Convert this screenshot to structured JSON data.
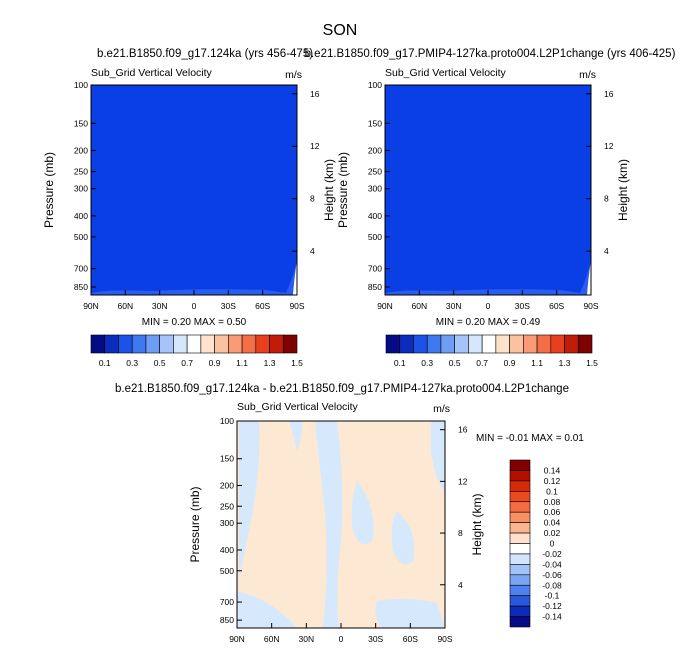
{
  "page": {
    "title": "SON"
  },
  "chart_data": [
    {
      "type": "heatmap",
      "title": "b.e21.B1850.f09_g17.124ka (yrs 456-475)",
      "subtitle": "Sub_Grid Vertical Velocity",
      "units": "m/s",
      "ylabel": "Pressure (mb)",
      "y2label": "Height (km)",
      "x_ticks": [
        "90N",
        "60N",
        "30N",
        "0",
        "30S",
        "60S",
        "90S"
      ],
      "y_ticks": [
        "100",
        "150",
        "200",
        "250",
        "300",
        "400",
        "500",
        "700",
        "850"
      ],
      "y_ticks_values": [
        100,
        150,
        200,
        250,
        300,
        400,
        500,
        700,
        850
      ],
      "ylim": [
        100,
        925
      ],
      "y2_ticks": [
        "16",
        "12",
        "8",
        "4"
      ],
      "y2_ticks_values": [
        16,
        12,
        8,
        4
      ],
      "stats": {
        "min_label": "MIN =",
        "min": "0.20",
        "max_label": "MAX =",
        "max": "0.50"
      },
      "dominant_value": 0.2,
      "field_color": "#0a3fe6",
      "colorbar": {
        "labels": [
          "0.1",
          "0.3",
          "0.5",
          "0.7",
          "0.9",
          "1.1",
          "1.3",
          "1.5"
        ],
        "colors": [
          "#030c86",
          "#0c2cbd",
          "#1d52e9",
          "#3f78f0",
          "#6f9df5",
          "#a5c4f9",
          "#d6e6fb",
          "#ffffff",
          "#fde3cc",
          "#fbc2a1",
          "#f99b76",
          "#f56e48",
          "#e8401f",
          "#c11b09",
          "#7f0000"
        ]
      }
    },
    {
      "type": "heatmap",
      "title": "b.e21.B1850.f09_g17.PMIP4-127ka.proto004.L2P1change (yrs 406-425)",
      "subtitle": "Sub_Grid Vertical Velocity",
      "units": "m/s",
      "ylabel": "Pressure (mb)",
      "y2label": "Height (km)",
      "x_ticks": [
        "90N",
        "60N",
        "30N",
        "0",
        "30S",
        "60S",
        "90S"
      ],
      "y_ticks": [
        "100",
        "150",
        "200",
        "250",
        "300",
        "400",
        "500",
        "700",
        "850"
      ],
      "y_ticks_values": [
        100,
        150,
        200,
        250,
        300,
        400,
        500,
        700,
        850
      ],
      "ylim": [
        100,
        925
      ],
      "y2_ticks": [
        "16",
        "12",
        "8",
        "4"
      ],
      "y2_ticks_values": [
        16,
        12,
        8,
        4
      ],
      "stats": {
        "min_label": "MIN =",
        "min": "0.20",
        "max_label": "MAX =",
        "max": "0.49"
      },
      "dominant_value": 0.2,
      "field_color": "#0a3fe6",
      "colorbar": {
        "labels": [
          "0.1",
          "0.3",
          "0.5",
          "0.7",
          "0.9",
          "1.1",
          "1.3",
          "1.5"
        ],
        "colors": [
          "#030c86",
          "#0c2cbd",
          "#1d52e9",
          "#3f78f0",
          "#6f9df5",
          "#a5c4f9",
          "#d6e6fb",
          "#ffffff",
          "#fde3cc",
          "#fbc2a1",
          "#f99b76",
          "#f56e48",
          "#e8401f",
          "#c11b09",
          "#7f0000"
        ]
      }
    },
    {
      "type": "heatmap",
      "title": "b.e21.B1850.f09_g17.124ka - b.e21.B1850.f09_g17.PMIP4-127ka.proto004.L2P1change",
      "subtitle": "Sub_Grid Vertical Velocity",
      "units": "m/s",
      "ylabel": "Pressure (mb)",
      "y2label": "Height (km)",
      "x_ticks": [
        "90N",
        "60N",
        "30N",
        "0",
        "30S",
        "60S",
        "90S"
      ],
      "y_ticks": [
        "100",
        "150",
        "200",
        "250",
        "300",
        "400",
        "500",
        "700",
        "850"
      ],
      "y_ticks_values": [
        100,
        150,
        200,
        250,
        300,
        400,
        500,
        700,
        850
      ],
      "ylim": [
        100,
        925
      ],
      "y2_ticks": [
        "16",
        "12",
        "8",
        "4"
      ],
      "y2_ticks_values": [
        16,
        12,
        8,
        4
      ],
      "stats": {
        "min_label": "MIN =",
        "min": "-0.01",
        "max_label": "MAX =",
        "max": "0.01"
      },
      "positive_color": "#fde8d4",
      "negative_color": "#d6e8fb",
      "colorbar": {
        "labels": [
          "0.14",
          "0.12",
          "0.1",
          "0.08",
          "0.06",
          "0.04",
          "0.02",
          "0",
          "-0.02",
          "-0.04",
          "-0.06",
          "-0.08",
          "-0.1",
          "-0.12",
          "-0.14"
        ],
        "colors": [
          "#7f0000",
          "#b30f00",
          "#d42a08",
          "#ea4a1e",
          "#f46c40",
          "#f89066",
          "#fbb591",
          "#fde1cc",
          "#ffffff",
          "#d3e5fb",
          "#9fc2f7",
          "#7aa5f3",
          "#4f82ee",
          "#2856dc",
          "#0b2bb8",
          "#030c86"
        ]
      }
    }
  ]
}
